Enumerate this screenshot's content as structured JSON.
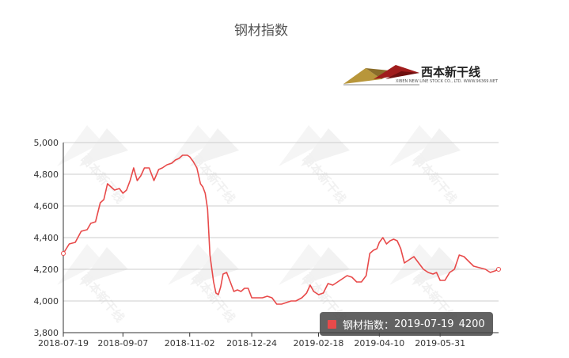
{
  "chart_data": {
    "type": "line",
    "title": "钢材指数",
    "xlabel": "",
    "ylabel": "",
    "ylim": [
      3800,
      5000
    ],
    "yticks": [
      "3,800",
      "4,000",
      "4,200",
      "4,400",
      "4,600",
      "4,800",
      "5,000"
    ],
    "xticks": [
      "2018-07-19",
      "2018-09-07",
      "2018-11-02",
      "2018-12-24",
      "2019-02-18",
      "2019-04-10",
      "2019-05-31"
    ],
    "grid": true,
    "series": [
      {
        "name": "钢材指数",
        "color": "#e84a4a",
        "points": [
          [
            "2018-07-19",
            4300
          ],
          [
            "2018-07-24",
            4360
          ],
          [
            "2018-07-29",
            4370
          ],
          [
            "2018-08-03",
            4440
          ],
          [
            "2018-08-08",
            4450
          ],
          [
            "2018-08-11",
            4490
          ],
          [
            "2018-08-15",
            4500
          ],
          [
            "2018-08-19",
            4620
          ],
          [
            "2018-08-22",
            4640
          ],
          [
            "2018-08-25",
            4740
          ],
          [
            "2018-08-28",
            4720
          ],
          [
            "2018-08-31",
            4700
          ],
          [
            "2018-09-04",
            4710
          ],
          [
            "2018-09-07",
            4680
          ],
          [
            "2018-09-10",
            4700
          ],
          [
            "2018-09-13",
            4760
          ],
          [
            "2018-09-16",
            4840
          ],
          [
            "2018-09-19",
            4760
          ],
          [
            "2018-09-22",
            4790
          ],
          [
            "2018-09-25",
            4840
          ],
          [
            "2018-09-29",
            4840
          ],
          [
            "2018-10-03",
            4760
          ],
          [
            "2018-10-07",
            4830
          ],
          [
            "2018-10-10",
            4840
          ],
          [
            "2018-10-14",
            4860
          ],
          [
            "2018-10-18",
            4870
          ],
          [
            "2018-10-21",
            4890
          ],
          [
            "2018-10-24",
            4900
          ],
          [
            "2018-10-27",
            4920
          ],
          [
            "2018-10-31",
            4920
          ],
          [
            "2018-11-02",
            4910
          ],
          [
            "2018-11-05",
            4880
          ],
          [
            "2018-11-08",
            4840
          ],
          [
            "2018-11-11",
            4740
          ],
          [
            "2018-11-13",
            4720
          ],
          [
            "2018-11-15",
            4680
          ],
          [
            "2018-11-17",
            4580
          ],
          [
            "2018-11-19",
            4290
          ],
          [
            "2018-11-22",
            4120
          ],
          [
            "2018-11-24",
            4050
          ],
          [
            "2018-11-26",
            4040
          ],
          [
            "2018-11-28",
            4090
          ],
          [
            "2018-11-30",
            4170
          ],
          [
            "2018-12-03",
            4180
          ],
          [
            "2018-12-06",
            4120
          ],
          [
            "2018-12-09",
            4060
          ],
          [
            "2018-12-12",
            4070
          ],
          [
            "2018-12-15",
            4060
          ],
          [
            "2018-12-18",
            4080
          ],
          [
            "2018-12-21",
            4080
          ],
          [
            "2018-12-24",
            4020
          ],
          [
            "2018-12-28",
            4020
          ],
          [
            "2019-01-02",
            4020
          ],
          [
            "2019-01-06",
            4030
          ],
          [
            "2019-01-10",
            4020
          ],
          [
            "2019-01-14",
            3980
          ],
          [
            "2019-01-18",
            3980
          ],
          [
            "2019-01-22",
            3990
          ],
          [
            "2019-01-26",
            4000
          ],
          [
            "2019-01-30",
            4000
          ],
          [
            "2019-02-04",
            4020
          ],
          [
            "2019-02-08",
            4050
          ],
          [
            "2019-02-11",
            4100
          ],
          [
            "2019-02-14",
            4060
          ],
          [
            "2019-02-18",
            4040
          ],
          [
            "2019-02-22",
            4050
          ],
          [
            "2019-02-26",
            4110
          ],
          [
            "2019-03-02",
            4100
          ],
          [
            "2019-03-06",
            4120
          ],
          [
            "2019-03-10",
            4140
          ],
          [
            "2019-03-14",
            4160
          ],
          [
            "2019-03-18",
            4150
          ],
          [
            "2019-03-22",
            4120
          ],
          [
            "2019-03-26",
            4120
          ],
          [
            "2019-03-30",
            4160
          ],
          [
            "2019-04-02",
            4300
          ],
          [
            "2019-04-05",
            4320
          ],
          [
            "2019-04-08",
            4330
          ],
          [
            "2019-04-10",
            4370
          ],
          [
            "2019-04-13",
            4400
          ],
          [
            "2019-04-16",
            4360
          ],
          [
            "2019-04-19",
            4380
          ],
          [
            "2019-04-22",
            4390
          ],
          [
            "2019-04-25",
            4380
          ],
          [
            "2019-04-28",
            4330
          ],
          [
            "2019-05-01",
            4240
          ],
          [
            "2019-05-05",
            4260
          ],
          [
            "2019-05-09",
            4280
          ],
          [
            "2019-05-13",
            4240
          ],
          [
            "2019-05-17",
            4200
          ],
          [
            "2019-05-21",
            4180
          ],
          [
            "2019-05-25",
            4170
          ],
          [
            "2019-05-28",
            4180
          ],
          [
            "2019-05-31",
            4130
          ],
          [
            "2019-06-04",
            4130
          ],
          [
            "2019-06-08",
            4180
          ],
          [
            "2019-06-12",
            4200
          ],
          [
            "2019-06-16",
            4290
          ],
          [
            "2019-06-20",
            4280
          ],
          [
            "2019-06-24",
            4250
          ],
          [
            "2019-06-28",
            4220
          ],
          [
            "2019-07-03",
            4210
          ],
          [
            "2019-07-08",
            4200
          ],
          [
            "2019-07-12",
            4180
          ],
          [
            "2019-07-16",
            4190
          ],
          [
            "2019-07-19",
            4200
          ]
        ]
      }
    ]
  },
  "logo": {
    "name": "西本新干线",
    "subtitle": "XIBEN NEW LINE STOCK CO., LTD.   WWW.96369.NET"
  },
  "watermark_text": "西本新干线",
  "tooltip": {
    "series": "钢材指数：",
    "date": "2019-07-19",
    "value": "4200",
    "color": "#e84a4a"
  }
}
